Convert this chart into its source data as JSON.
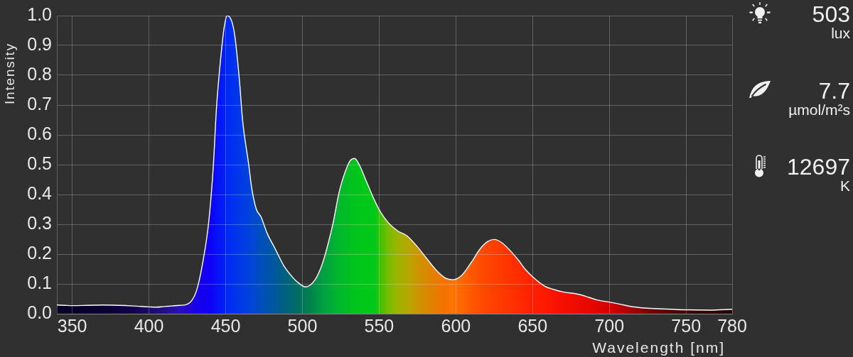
{
  "chart_data": {
    "type": "area",
    "xlabel": "Wavelength [nm]",
    "ylabel": "Intensity",
    "x": [
      340,
      345,
      350,
      360,
      370,
      380,
      390,
      400,
      405,
      410,
      415,
      420,
      424,
      428,
      431,
      435,
      439,
      442,
      444,
      447,
      449,
      451,
      454,
      456,
      459,
      461,
      465,
      467,
      470,
      473,
      477,
      482,
      488,
      494,
      497,
      502,
      508,
      513,
      517,
      520,
      524,
      528,
      531,
      534,
      537,
      542,
      547,
      551,
      556,
      562,
      568,
      574,
      581,
      587,
      593,
      598,
      604,
      610,
      616,
      621,
      625,
      630,
      636,
      641,
      645,
      650,
      658,
      664,
      670,
      679,
      686,
      692,
      700,
      707,
      713,
      723,
      735,
      750,
      766,
      780
    ],
    "series": [
      {
        "color": "#ffffff",
        "colors": [
          "#070028",
          "#070028",
          "#070028",
          "#08002c",
          "#0a0032",
          "#0e003c",
          "#140050",
          "#1a0a66",
          "#1e0c78",
          "#220e8c",
          "#2810a4",
          "#2a10b8",
          "#2808cc",
          "#2004dc",
          "#1800ea",
          "#1400f0",
          "#1000f4",
          "#0c08f6",
          "#0810f8",
          "#0418f8",
          "#0020f6",
          "#0028f2",
          "#0030f0",
          "#0034ec",
          "#0038e8",
          "#003ce4",
          "#0042dc",
          "#0046d4",
          "#004ac8",
          "#004ebc",
          "#0052b0",
          "#00589c",
          "#006080",
          "#00686a",
          "#006c60",
          "#007a52",
          "#008c48",
          "#009e40",
          "#00a83a",
          "#00b034",
          "#00b82c",
          "#00bc26",
          "#00c020",
          "#00c41c",
          "#00c61a",
          "#00c818",
          "#00c818",
          "#40c000",
          "#78bc00",
          "#9cb400",
          "#b4a800",
          "#c89800",
          "#d88800",
          "#e87c00",
          "#f47200",
          "#ff7400",
          "#ff6600",
          "#ff5800",
          "#ff4c00",
          "#ff4400",
          "#ff4000",
          "#ff3a00",
          "#ff3200",
          "#ff2c00",
          "#ff2600",
          "#ff2000",
          "#ff1a00",
          "#f81400",
          "#f41000",
          "#ec0c00",
          "#e80800",
          "#e00400",
          "#d40000",
          "#c00000",
          "#a80000",
          "#800000",
          "#600000",
          "#400000",
          "#300000",
          "#200000"
        ],
        "values": [
          0.029,
          0.028,
          0.027,
          0.028,
          0.029,
          0.028,
          0.026,
          0.023,
          0.022,
          0.024,
          0.026,
          0.028,
          0.03,
          0.045,
          0.077,
          0.17,
          0.31,
          0.5,
          0.69,
          0.87,
          0.96,
          1.0,
          0.98,
          0.93,
          0.78,
          0.65,
          0.5,
          0.42,
          0.35,
          0.325,
          0.27,
          0.22,
          0.16,
          0.12,
          0.105,
          0.09,
          0.112,
          0.168,
          0.24,
          0.305,
          0.41,
          0.478,
          0.513,
          0.521,
          0.5,
          0.44,
          0.38,
          0.34,
          0.305,
          0.278,
          0.262,
          0.23,
          0.185,
          0.147,
          0.12,
          0.114,
          0.13,
          0.172,
          0.219,
          0.243,
          0.249,
          0.238,
          0.208,
          0.178,
          0.15,
          0.124,
          0.092,
          0.081,
          0.073,
          0.066,
          0.056,
          0.046,
          0.039,
          0.032,
          0.025,
          0.019,
          0.016,
          0.013,
          0.012,
          0.015
        ]
      }
    ],
    "xlim": [
      340,
      780
    ],
    "xticks": [
      350,
      400,
      450,
      500,
      550,
      600,
      650,
      700,
      750,
      780
    ],
    "ylim": [
      0,
      1
    ],
    "yticks": [
      {
        "value": 0,
        "label": "0.0"
      },
      0.1,
      0.2,
      0.3,
      0.4,
      0.5,
      0.6,
      0.7,
      0.8,
      0.9,
      {
        "value": 1,
        "label": "1.0"
      }
    ],
    "grid": true,
    "annotations": [
      "503",
      "lux",
      "7.7",
      "µmol/m²s",
      "12697",
      "K"
    ]
  }
}
